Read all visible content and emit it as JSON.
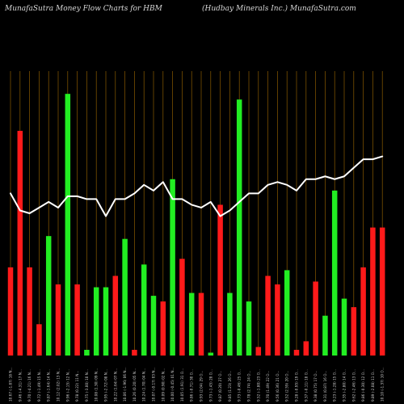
{
  "header": {
    "left": "MunafaSutra  Money Flow  Charts for HBM",
    "right": "(Hudbay Minerals Inc.) MunafaSutra.com"
  },
  "colors": {
    "background": "#000000",
    "gridline": "#8a5a00",
    "up": "#22ee22",
    "down": "#ff1a1a",
    "line": "#ffffff"
  },
  "chart_data": {
    "type": "bar",
    "title": "MunafaSutra  Money Flow  Charts for HBM",
    "subtitle": "(Hudbay Minerals Inc.) MunafaSutra.com",
    "xlabel": "",
    "ylabel": "",
    "ylim": [
      0,
      100
    ],
    "grid": "vertical",
    "categories": [
      "10.67 (-1.87) 18 N...",
      "9.46 (-4.31) 17 N...",
      "9.70 (-4.21) 16 N...",
      "9.72 (-1.49) 15 N...",
      "9.87 (-1.64) 14 N...",
      "10.12 (2.02) 13 N...",
      "9.96 (-2.15) 12 N...",
      "9.78 (0.22) 11 N...",
      "9.75 (-3.00) 10 N...",
      "10.08 (1.30) 09 N...",
      "9.95 (-2.72) 08 N...",
      "10.22 (1.64) 07 N...",
      "10.06 (-1.96) 06 N...",
      "10.26 (0.20) 05 N...",
      "10.24 (1.70) 04 N...",
      "10.07 (-0.17) 03 N...",
      "10.09 (0.90) 02 N...",
      "10.00 (-0.45) 01 N...",
      "10.05 (1.91) 31 O...",
      "9.86 (-0.71) 30 O...",
      "9.93 (2.04) 29 O...",
      "9.73 (-1.45) 28 O...",
      "9.87 (0.20) 27 O...",
      "9.85 (1.23) 26 O...",
      "9.73 (-0.46) 25 O...",
      "9.78 (2.74) 24 O...",
      "9.52 (-1.80) 23 O...",
      "9.70 (1.49) 22 O...",
      "9.56 (0.36) 21 O...",
      "9.52 (2.59) 20 O...",
      "9.28 (-0.95) 19 O...",
      "9.37 (-0.11) 18 O...",
      "9.38 (0.75) 17 O...",
      "9.31 (0.87) 16 O...",
      "9.23 (-1.28) 15 O...",
      "9.35 (-2.80) 14 O...",
      "9.62 (-2.46) 13 O...",
      "9.86 (-0.30) 12 O...",
      "9.89 (-2.08) 11 O...",
      "10.10 (-1.37) 10 O..."
    ],
    "values": [
      31,
      79,
      31,
      11,
      42,
      25,
      92,
      25,
      2,
      24,
      24,
      28,
      41,
      2,
      32,
      21,
      19,
      62,
      34,
      22,
      22,
      1,
      53,
      22,
      90,
      19,
      3,
      28,
      25,
      30,
      2,
      5,
      26,
      14,
      58,
      20,
      17,
      31,
      45,
      45
    ],
    "directions": [
      "down",
      "down",
      "down",
      "down",
      "up",
      "down",
      "up",
      "down",
      "up",
      "up",
      "up",
      "down",
      "up",
      "down",
      "up",
      "up",
      "down",
      "up",
      "down",
      "up",
      "down",
      "up",
      "down",
      "up",
      "up",
      "up",
      "down",
      "down",
      "down",
      "up",
      "down",
      "down",
      "down",
      "up",
      "up",
      "up",
      "down",
      "down",
      "down",
      "down"
    ],
    "flow_line": [
      57,
      51,
      50,
      52,
      54,
      52,
      56,
      56,
      55,
      55,
      49,
      55,
      55,
      57,
      60,
      58,
      61,
      55,
      55,
      53,
      52,
      54,
      49,
      51,
      54,
      57,
      57,
      60,
      61,
      60,
      58,
      62,
      62,
      63,
      62,
      63,
      66,
      69,
      69,
      70
    ]
  }
}
